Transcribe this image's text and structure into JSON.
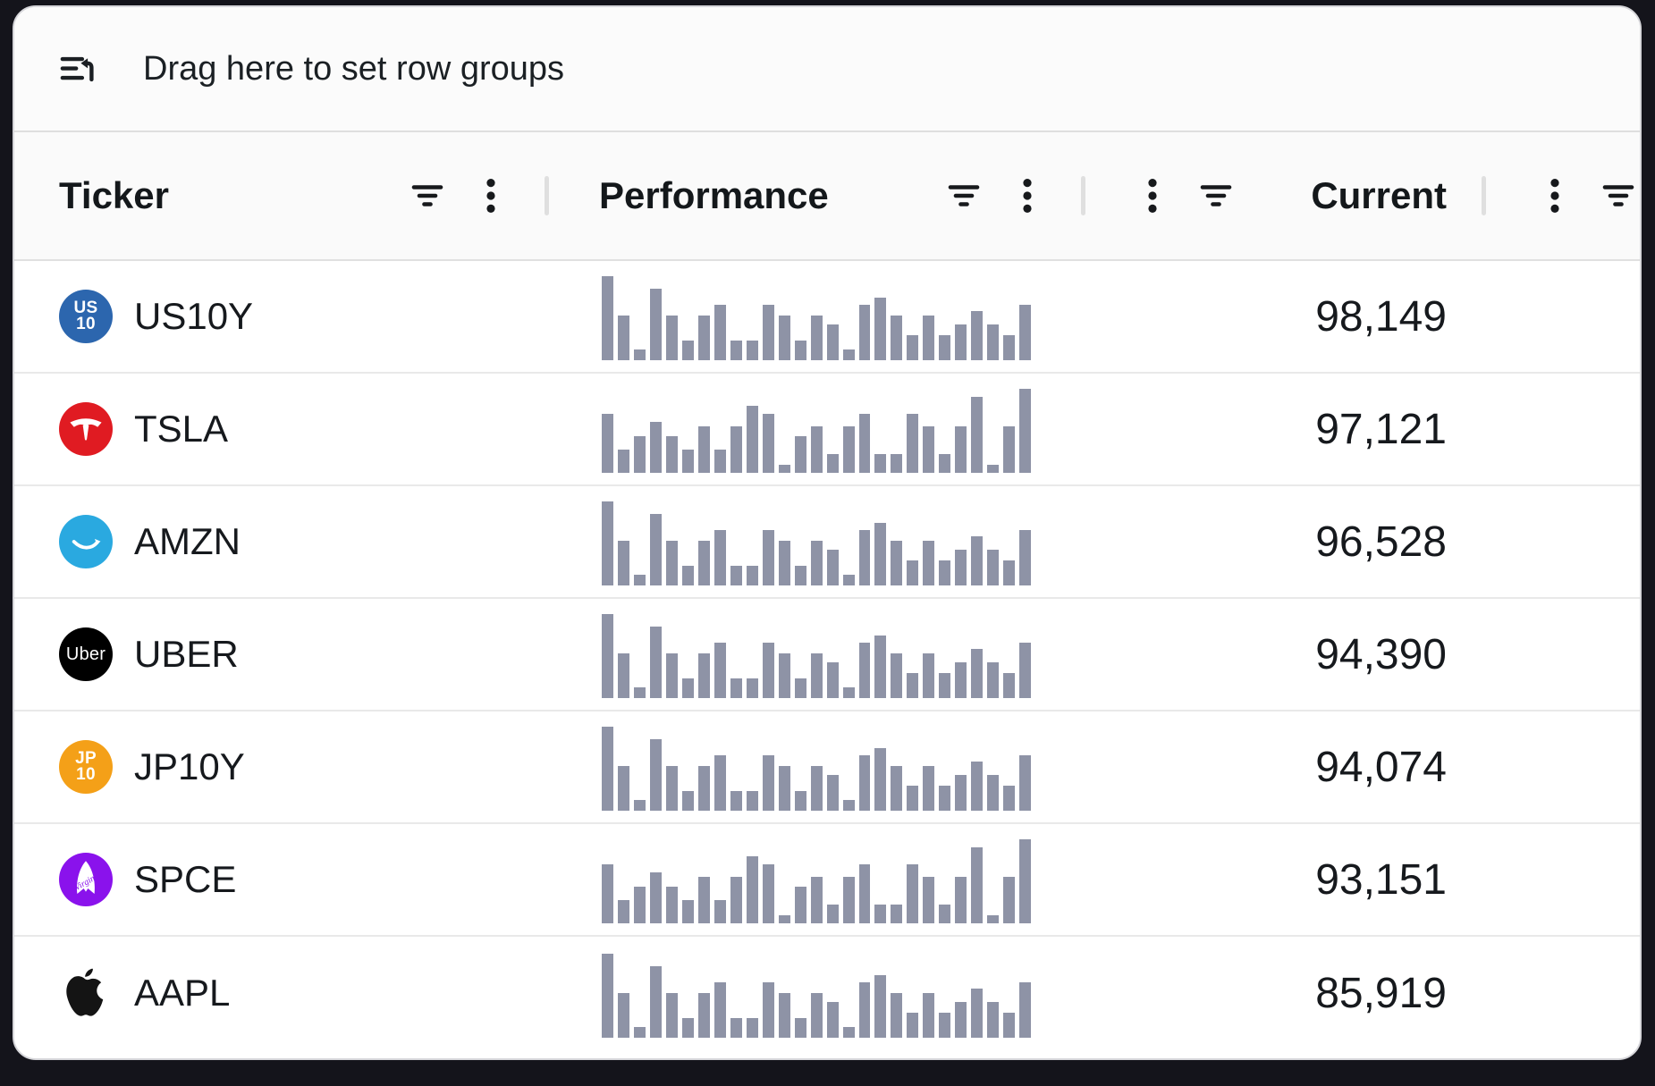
{
  "group_panel": {
    "label": "Drag here to set row groups",
    "icon": "row-groups-icon"
  },
  "header": {
    "columns": [
      {
        "id": "ticker",
        "label": "Ticker",
        "align": "left"
      },
      {
        "id": "performance",
        "label": "Performance",
        "align": "left"
      },
      {
        "id": "current",
        "label": "Current",
        "align": "right"
      },
      {
        "id": "extra",
        "label": "",
        "align": "right"
      }
    ]
  },
  "rows": [
    {
      "ticker": "US10Y",
      "logo": "us10-icon",
      "logo_color": "#2c66ae",
      "logo_lines": [
        "US",
        "10"
      ],
      "spark": "A",
      "current": "98,149"
    },
    {
      "ticker": "TSLA",
      "logo": "tesla-icon",
      "logo_color": "#e01b22",
      "logo_lines": [],
      "spark": "B",
      "current": "97,121"
    },
    {
      "ticker": "AMZN",
      "logo": "amazon-icon",
      "logo_color": "#2aa9e0",
      "logo_lines": [],
      "spark": "A",
      "current": "96,528"
    },
    {
      "ticker": "UBER",
      "logo": "uber-icon",
      "logo_color": "#000000",
      "logo_lines": [
        "Uber"
      ],
      "spark": "A",
      "current": "94,390"
    },
    {
      "ticker": "JP10Y",
      "logo": "jp10-icon",
      "logo_color": "#f4a018",
      "logo_lines": [
        "JP",
        "10"
      ],
      "spark": "A",
      "current": "94,074"
    },
    {
      "ticker": "SPCE",
      "logo": "virgin-galactic-icon",
      "logo_color": "#8a12ec",
      "logo_lines": [],
      "spark": "B",
      "current": "93,151"
    },
    {
      "ticker": "AAPL",
      "logo": "apple-icon",
      "logo_color": "#141414",
      "logo_lines": [],
      "spark": "A",
      "current": "85,919"
    }
  ],
  "sparklines": {
    "color": "#8e93a6",
    "A": [
      100,
      53,
      13,
      85,
      53,
      23,
      53,
      66,
      23,
      23,
      66,
      53,
      23,
      53,
      43,
      13,
      66,
      75,
      53,
      30,
      53,
      30,
      43,
      59,
      43,
      30,
      66
    ],
    "B": [
      70,
      28,
      44,
      61,
      44,
      28,
      55,
      28,
      55,
      80,
      70,
      10,
      44,
      55,
      22,
      55,
      70,
      22,
      22,
      70,
      55,
      22,
      55,
      90,
      10,
      55,
      100
    ]
  }
}
